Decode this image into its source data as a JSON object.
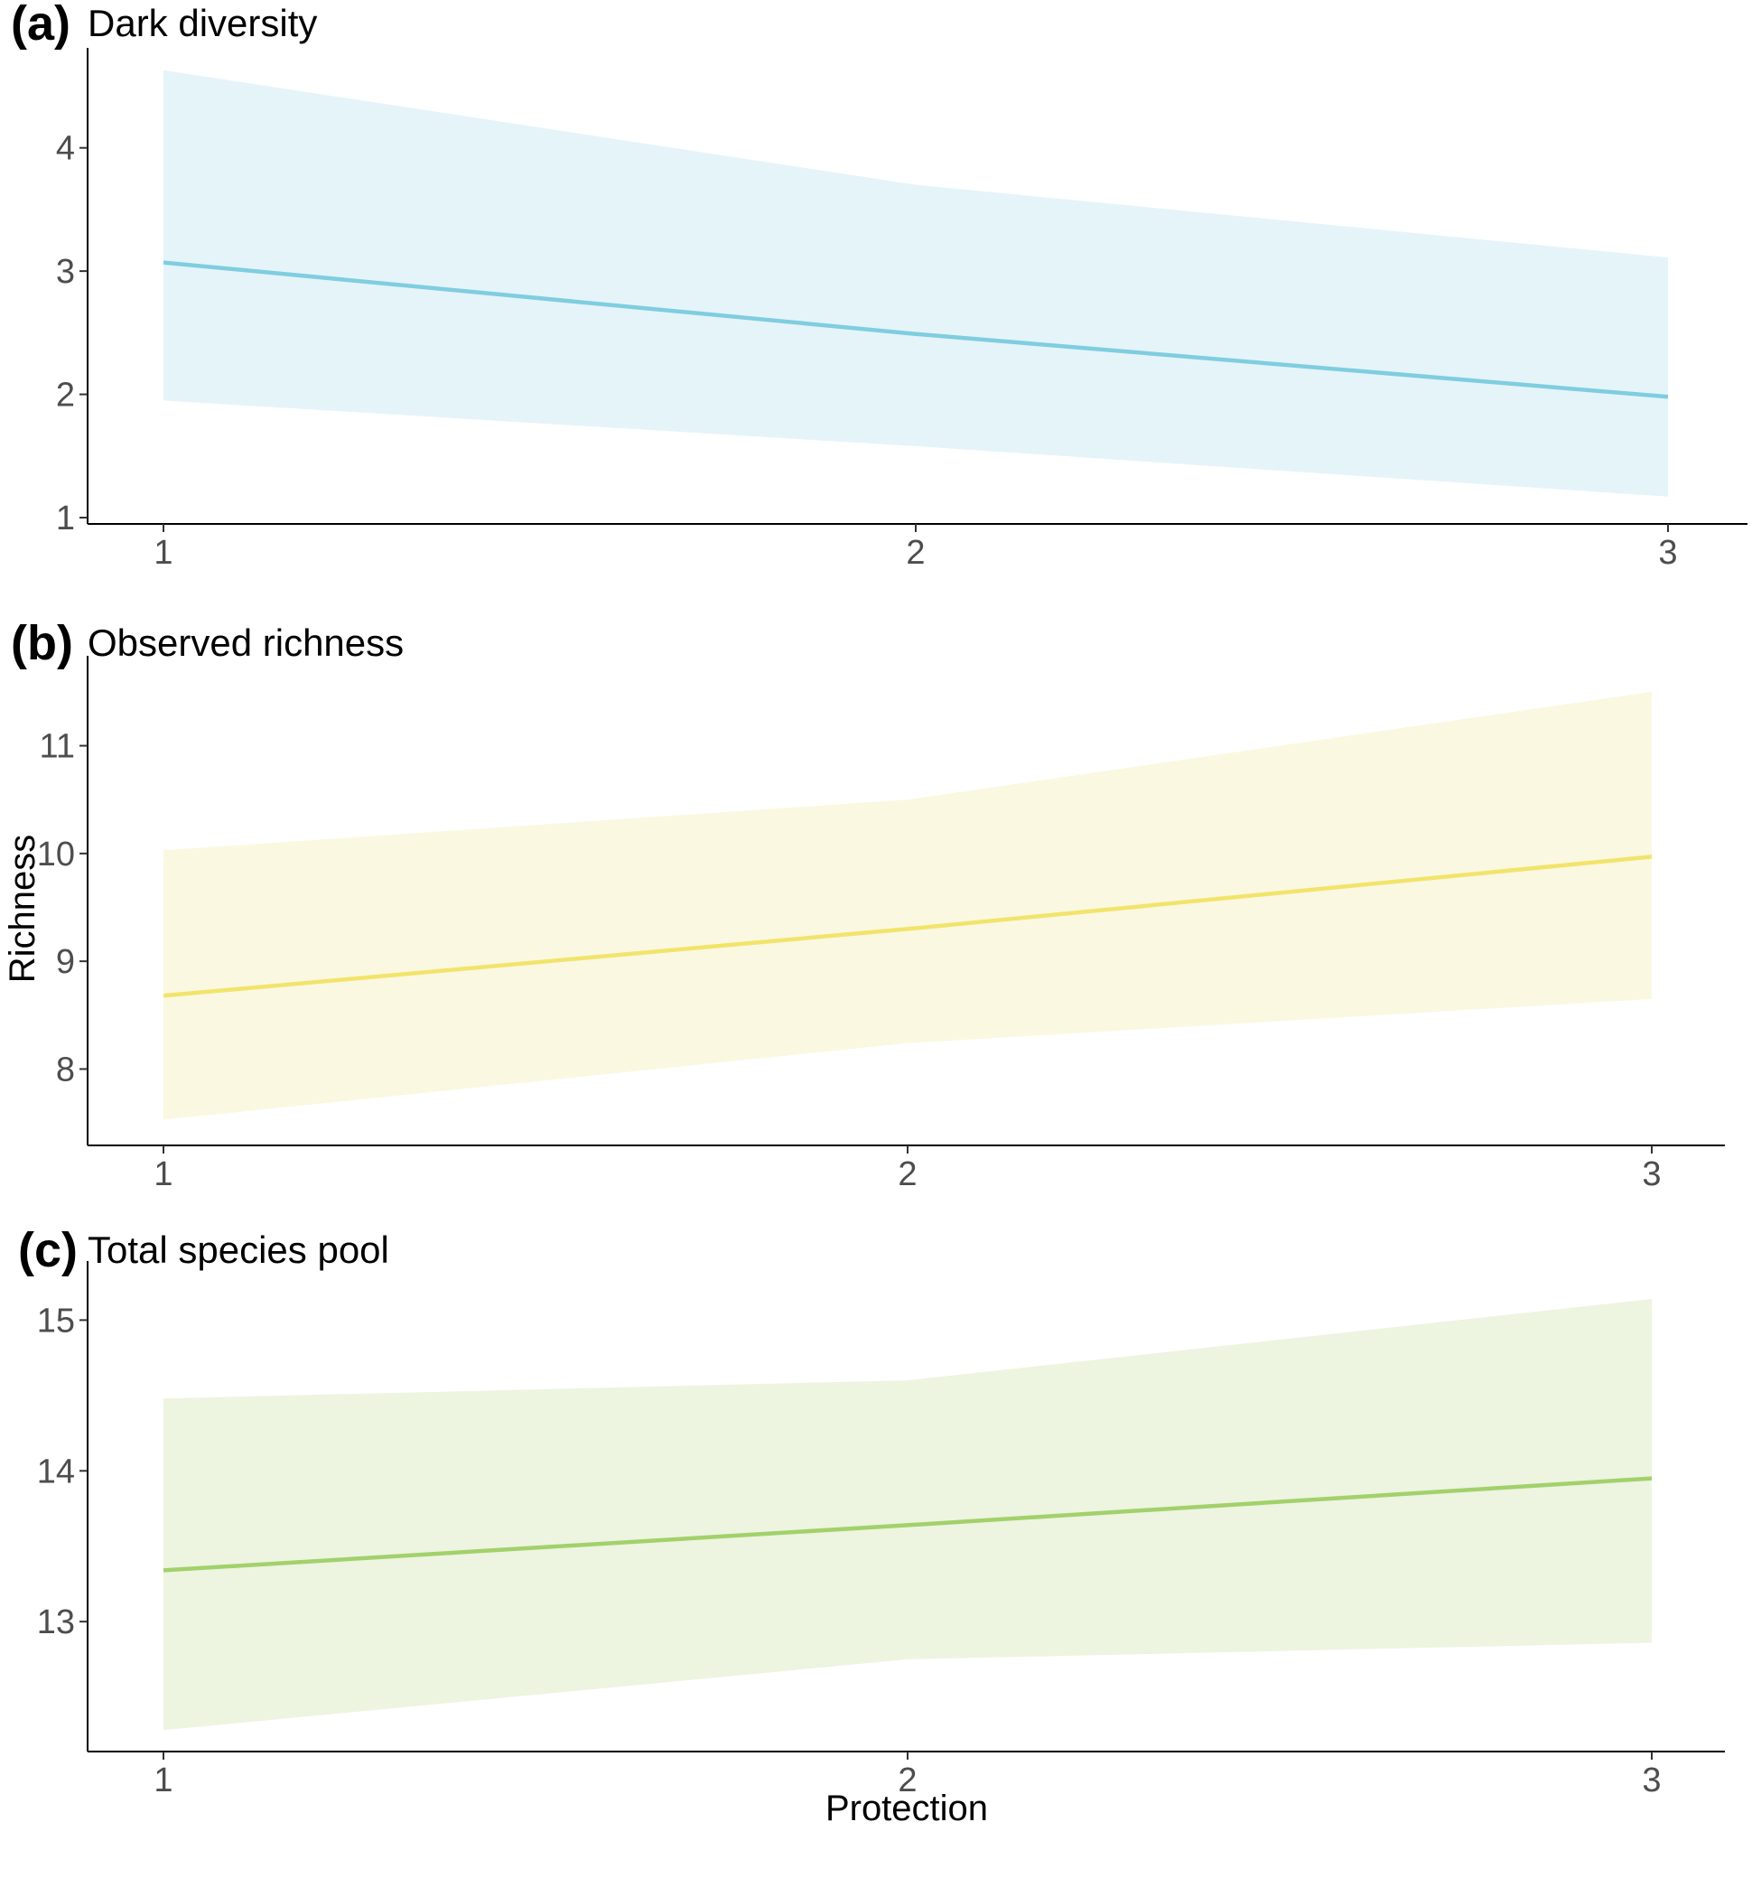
{
  "chart_data": [
    {
      "type": "line",
      "panel_label": "(a)",
      "title": "Dark diversity",
      "xlabel": "",
      "ylabel": "",
      "x": [
        1,
        2,
        3
      ],
      "x_ticks": [
        "1",
        "2",
        "3"
      ],
      "y_ticks": [
        "1",
        "2",
        "3",
        "4"
      ],
      "ylim": [
        1,
        4.65
      ],
      "series": [
        {
          "fit": [
            3.07,
            2.49,
            1.98
          ],
          "lower": [
            1.95,
            1.58,
            1.17
          ],
          "upper": [
            4.63,
            3.7,
            3.11
          ]
        }
      ],
      "color": "#7fcde0",
      "ribbon_color": "#e5f4f9",
      "grid": false
    },
    {
      "type": "line",
      "panel_label": "(b)",
      "title": "Observed richness",
      "xlabel": "",
      "ylabel": "Richness",
      "x": [
        1,
        2,
        3
      ],
      "x_ticks": [
        "1",
        "2",
        "3"
      ],
      "y_ticks": [
        "8",
        "9",
        "10",
        "11"
      ],
      "ylim": [
        7.35,
        11.65
      ],
      "series": [
        {
          "fit": [
            8.68,
            9.3,
            9.97
          ],
          "lower": [
            7.53,
            8.24,
            8.65
          ],
          "upper": [
            10.03,
            10.5,
            11.5
          ]
        }
      ],
      "color": "#f2e46b",
      "ribbon_color": "#faf8e0",
      "grid": false
    },
    {
      "type": "line",
      "panel_label": "(c)",
      "title": "Total species pool",
      "xlabel": "Protection",
      "ylabel": "",
      "x": [
        1,
        2,
        3
      ],
      "x_ticks": [
        "1",
        "2",
        "3"
      ],
      "y_ticks": [
        "13",
        "14",
        "15"
      ],
      "ylim": [
        12.18,
        15.26
      ],
      "series": [
        {
          "fit": [
            13.34,
            13.64,
            13.95
          ],
          "lower": [
            12.28,
            12.75,
            12.86
          ],
          "upper": [
            14.48,
            14.6,
            15.14
          ]
        }
      ],
      "color": "#a2d16b",
      "ribbon_color": "#edf4e0",
      "grid": false
    }
  ]
}
